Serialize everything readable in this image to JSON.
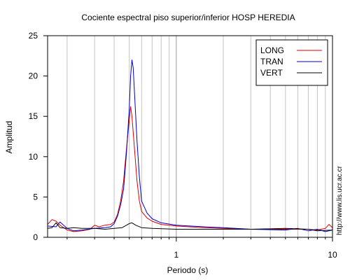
{
  "chart_data": {
    "type": "line",
    "title": "Cociente espectral piso superior/inferior  HOSP HEREDIA",
    "xlabel": "Periodo (s)",
    "ylabel": "Amplitud",
    "x_scale": "log",
    "xlim": [
      0.15,
      10
    ],
    "ylim": [
      0,
      25
    ],
    "x_tick_labels": [
      "1",
      "10"
    ],
    "y_tick_labels": [
      "0",
      "5",
      "10",
      "15",
      "20",
      "25"
    ],
    "grid": true,
    "legend_position": "top-right",
    "watermark": "http://www.lis.ucr.ac.cr",
    "series": [
      {
        "name": "LONG",
        "color": "#dd0000",
        "points": [
          [
            0.15,
            1.6
          ],
          [
            0.16,
            2.2
          ],
          [
            0.17,
            2.0
          ],
          [
            0.18,
            1.5
          ],
          [
            0.2,
            0.9
          ],
          [
            0.22,
            0.7
          ],
          [
            0.25,
            0.8
          ],
          [
            0.28,
            1.0
          ],
          [
            0.3,
            1.5
          ],
          [
            0.32,
            1.3
          ],
          [
            0.35,
            1.5
          ],
          [
            0.38,
            1.6
          ],
          [
            0.4,
            1.9
          ],
          [
            0.42,
            2.8
          ],
          [
            0.44,
            4.5
          ],
          [
            0.46,
            7.0
          ],
          [
            0.48,
            11.0
          ],
          [
            0.5,
            14.5
          ],
          [
            0.51,
            16.2
          ],
          [
            0.52,
            15.0
          ],
          [
            0.54,
            11.0
          ],
          [
            0.56,
            7.0
          ],
          [
            0.58,
            4.5
          ],
          [
            0.6,
            3.2
          ],
          [
            0.65,
            2.4
          ],
          [
            0.7,
            2.0
          ],
          [
            0.8,
            1.6
          ],
          [
            1.0,
            1.4
          ],
          [
            1.5,
            1.2
          ],
          [
            2.0,
            1.1
          ],
          [
            3.0,
            1.0
          ],
          [
            5.0,
            1.0
          ],
          [
            7.0,
            1.0
          ],
          [
            8.0,
            0.9
          ],
          [
            9.0,
            1.1
          ],
          [
            9.5,
            1.6
          ],
          [
            10.0,
            1.2
          ]
        ]
      },
      {
        "name": "TRAN",
        "color": "#0000cc",
        "points": [
          [
            0.15,
            1.4
          ],
          [
            0.17,
            1.3
          ],
          [
            0.18,
            1.9
          ],
          [
            0.2,
            1.1
          ],
          [
            0.22,
            0.8
          ],
          [
            0.25,
            0.9
          ],
          [
            0.3,
            1.1
          ],
          [
            0.35,
            1.2
          ],
          [
            0.38,
            1.3
          ],
          [
            0.4,
            1.7
          ],
          [
            0.42,
            2.6
          ],
          [
            0.44,
            4.0
          ],
          [
            0.46,
            6.0
          ],
          [
            0.48,
            10.5
          ],
          [
            0.5,
            16.0
          ],
          [
            0.51,
            20.0
          ],
          [
            0.52,
            22.0
          ],
          [
            0.53,
            21.0
          ],
          [
            0.54,
            18.0
          ],
          [
            0.56,
            12.0
          ],
          [
            0.58,
            7.5
          ],
          [
            0.6,
            4.5
          ],
          [
            0.65,
            3.0
          ],
          [
            0.7,
            2.3
          ],
          [
            0.8,
            1.8
          ],
          [
            1.0,
            1.5
          ],
          [
            1.5,
            1.3
          ],
          [
            2.0,
            1.2
          ],
          [
            3.0,
            1.0
          ],
          [
            5.0,
            0.9
          ],
          [
            6.0,
            1.1
          ],
          [
            7.0,
            0.8
          ],
          [
            8.0,
            1.0
          ],
          [
            9.0,
            0.7
          ],
          [
            10.0,
            0.9
          ]
        ]
      },
      {
        "name": "VERT",
        "color": "#000000",
        "points": [
          [
            0.15,
            1.1
          ],
          [
            0.16,
            1.2
          ],
          [
            0.17,
            1.8
          ],
          [
            0.18,
            1.2
          ],
          [
            0.2,
            1.1
          ],
          [
            0.22,
            1.2
          ],
          [
            0.25,
            1.1
          ],
          [
            0.3,
            1.1
          ],
          [
            0.35,
            1.0
          ],
          [
            0.4,
            1.1
          ],
          [
            0.45,
            1.2
          ],
          [
            0.48,
            1.5
          ],
          [
            0.5,
            1.7
          ],
          [
            0.52,
            1.8
          ],
          [
            0.55,
            1.5
          ],
          [
            0.6,
            1.2
          ],
          [
            0.7,
            1.1
          ],
          [
            1.0,
            1.0
          ],
          [
            1.5,
            1.0
          ],
          [
            2.0,
            1.0
          ],
          [
            3.0,
            1.0
          ],
          [
            5.0,
            1.1
          ],
          [
            7.0,
            1.0
          ],
          [
            8.0,
            0.8
          ],
          [
            10.0,
            0.9
          ]
        ]
      }
    ]
  }
}
